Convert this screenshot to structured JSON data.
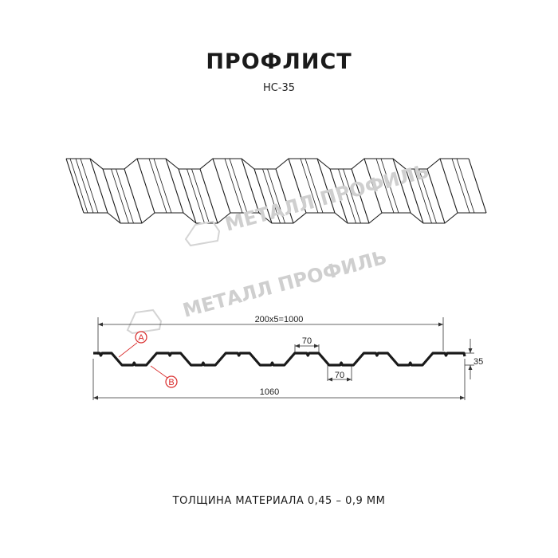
{
  "header": {
    "title": "ПРОФЛИСТ",
    "model": "НС-35"
  },
  "watermark": {
    "logo_text": "МЕТАЛЛ ПРОФИЛЬ"
  },
  "drawing": {
    "dimensions": {
      "pitch_total": "200x5=1000",
      "top_flat": "70",
      "bottom_flat": "70",
      "height": "35",
      "full_width": "1060"
    },
    "markers": {
      "a": "A",
      "b": "B"
    },
    "colors": {
      "profile": "#1a1a1a",
      "marker": "#d92b2b",
      "watermark": "#cfcfcf"
    }
  },
  "footer": {
    "thickness_label": "ТОЛЩИНА МАТЕРИАЛА 0,45 – 0,9 ММ"
  }
}
